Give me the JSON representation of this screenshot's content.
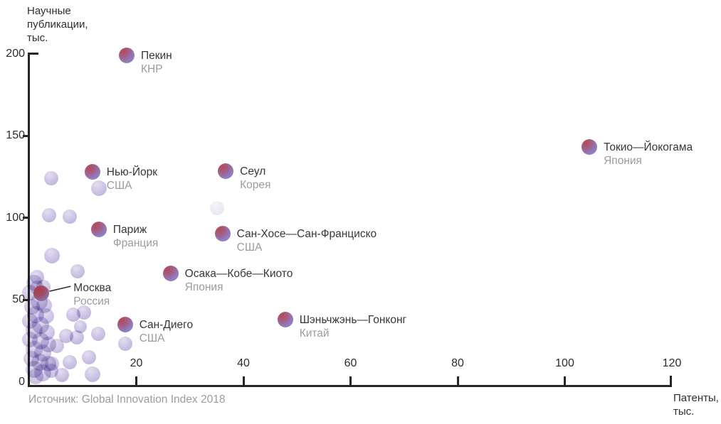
{
  "chart_data": {
    "type": "scatter",
    "title": "",
    "xlabel": "Патенты, тыс.",
    "ylabel": "Научные публикации, тыс.",
    "x_title_lines": [
      "Патенты,",
      "тыс."
    ],
    "y_title_lines": [
      "Научные",
      "публикации,",
      "тыс."
    ],
    "source": "Источник: Global Innovation Index 2018",
    "xlim": [
      0,
      120
    ],
    "ylim": [
      0,
      200
    ],
    "x_ticks": [
      20,
      40,
      60,
      80,
      100,
      120
    ],
    "y_ticks": [
      0,
      50,
      100,
      150,
      200
    ],
    "grid": false,
    "legend": "none",
    "series": [
      {
        "name": "labeled-cities",
        "points": [
          {
            "city": "Пекин",
            "country": "КНР",
            "x": 18.2,
            "y": 199
          },
          {
            "city": "Токио—Йокогама",
            "country": "Япония",
            "x": 104.6,
            "y": 143
          },
          {
            "city": "Нью-Йорк",
            "country": "США",
            "x": 11.8,
            "y": 128
          },
          {
            "city": "Сеул",
            "country": "Корея",
            "x": 36.7,
            "y": 128.5
          },
          {
            "city": "Париж",
            "country": "Франция",
            "x": 13,
            "y": 93
          },
          {
            "city": "Сан-Хосе—Сан-Франциско",
            "country": "США",
            "x": 36.1,
            "y": 90.3
          },
          {
            "city": "Осака—Кобе—Киото",
            "country": "Япония",
            "x": 26.4,
            "y": 66.1
          },
          {
            "city": "Москва",
            "country": "Россия",
            "x": 2.3,
            "y": 54,
            "variant": "red",
            "leader": true,
            "label_dx": 45,
            "label_dy": -17
          },
          {
            "city": "Сан-Диего",
            "country": "США",
            "x": 17.9,
            "y": 35
          },
          {
            "city": "Шэньчжэнь—Гонконг",
            "country": "Китай",
            "x": 47.8,
            "y": 38
          }
        ]
      },
      {
        "name": "unlabeled-cities",
        "points": [
          {
            "x": 4.1,
            "y": 124.1,
            "r": 10,
            "k": "light"
          },
          {
            "x": 13,
            "y": 118,
            "r": 11,
            "k": "light"
          },
          {
            "x": 3.7,
            "y": 101.6,
            "r": 10,
            "k": "light"
          },
          {
            "x": 7.6,
            "y": 100.8,
            "r": 10,
            "k": "light"
          },
          {
            "x": 35.1,
            "y": 105.9,
            "r": 10,
            "k": "light",
            "o": 0.3
          },
          {
            "x": 4.3,
            "y": 77,
            "r": 11,
            "k": "light"
          },
          {
            "x": 9,
            "y": 67.5,
            "r": 10,
            "k": "light"
          },
          {
            "x": 1.5,
            "y": 64,
            "r": 10,
            "k": "light"
          },
          {
            "x": 8.2,
            "y": 41.1,
            "r": 10,
            "k": "light"
          },
          {
            "x": 10.2,
            "y": 42.4,
            "r": 10,
            "k": "light"
          },
          {
            "x": 9.6,
            "y": 33.7,
            "r": 9,
            "k": "light"
          },
          {
            "x": 12.9,
            "y": 29.4,
            "r": 10,
            "k": "light"
          },
          {
            "x": 6.9,
            "y": 28.1,
            "r": 10,
            "k": "light"
          },
          {
            "x": 8.9,
            "y": 27.2,
            "r": 10,
            "k": "light"
          },
          {
            "x": 17.9,
            "y": 23.4,
            "r": 10,
            "k": "light"
          },
          {
            "x": 11.2,
            "y": 15.1,
            "r": 10,
            "k": "light"
          },
          {
            "x": 7.6,
            "y": 12.1,
            "r": 10,
            "k": "light"
          },
          {
            "x": 11.8,
            "y": 4.8,
            "r": 11,
            "k": "light"
          },
          {
            "x": 6.1,
            "y": 4.3,
            "r": 10,
            "k": "light"
          },
          {
            "x": 0.9,
            "y": 60.5,
            "r": 11,
            "k": "pile"
          },
          {
            "x": 2.6,
            "y": 58,
            "r": 10,
            "k": "pile"
          },
          {
            "x": 0.1,
            "y": 54.4,
            "r": 11,
            "k": "pile"
          },
          {
            "x": 1.5,
            "y": 57.5,
            "r": 10,
            "k": "pile"
          },
          {
            "x": 1.9,
            "y": 48.8,
            "r": 12,
            "k": "pile"
          },
          {
            "x": 0.5,
            "y": 45.8,
            "r": 11,
            "k": "pile"
          },
          {
            "x": 2.8,
            "y": 46.7,
            "r": 11,
            "k": "pile"
          },
          {
            "x": 1.2,
            "y": 41,
            "r": 12,
            "k": "pile"
          },
          {
            "x": 3.2,
            "y": 40.2,
            "r": 11,
            "k": "pile"
          },
          {
            "x": 0.1,
            "y": 37.1,
            "r": 11,
            "k": "pile"
          },
          {
            "x": 2.1,
            "y": 34.6,
            "r": 12,
            "k": "pile"
          },
          {
            "x": 0.9,
            "y": 31.5,
            "r": 12,
            "k": "pile"
          },
          {
            "x": 3.3,
            "y": 30.2,
            "r": 11,
            "k": "pile"
          },
          {
            "x": 0.1,
            "y": 25.9,
            "r": 11,
            "k": "pile"
          },
          {
            "x": 2.1,
            "y": 25.1,
            "r": 12,
            "k": "pile"
          },
          {
            "x": 3.6,
            "y": 22.9,
            "r": 11,
            "k": "pile"
          },
          {
            "x": 5.2,
            "y": 22,
            "r": 10,
            "k": "pile"
          },
          {
            "x": 0.9,
            "y": 19.9,
            "r": 12,
            "k": "pile"
          },
          {
            "x": 2.5,
            "y": 17.7,
            "r": 12,
            "k": "pile"
          },
          {
            "x": 0.4,
            "y": 14.3,
            "r": 11,
            "k": "pile"
          },
          {
            "x": 2,
            "y": 12.1,
            "r": 12,
            "k": "pile"
          },
          {
            "x": 3.6,
            "y": 11.2,
            "r": 11,
            "k": "pile"
          },
          {
            "x": 4.3,
            "y": 11.2,
            "r": 10,
            "k": "pile"
          },
          {
            "x": 0.9,
            "y": 7.8,
            "r": 12,
            "k": "pile"
          },
          {
            "x": 2.5,
            "y": 5.6,
            "r": 12,
            "k": "pile"
          },
          {
            "x": 4.1,
            "y": 6.9,
            "r": 10,
            "k": "pile"
          },
          {
            "x": 1.2,
            "y": 3.5,
            "r": 11,
            "k": "pile"
          }
        ]
      }
    ],
    "colors": {
      "axis": "#262626",
      "city_label": "#37373b",
      "country_label": "#9b9ba1",
      "labeled_bubble_red": "#b24b58",
      "labeled_bubble_purple": "#8d7dc2",
      "unlabeled_bubble": "#b3a5d3"
    }
  }
}
